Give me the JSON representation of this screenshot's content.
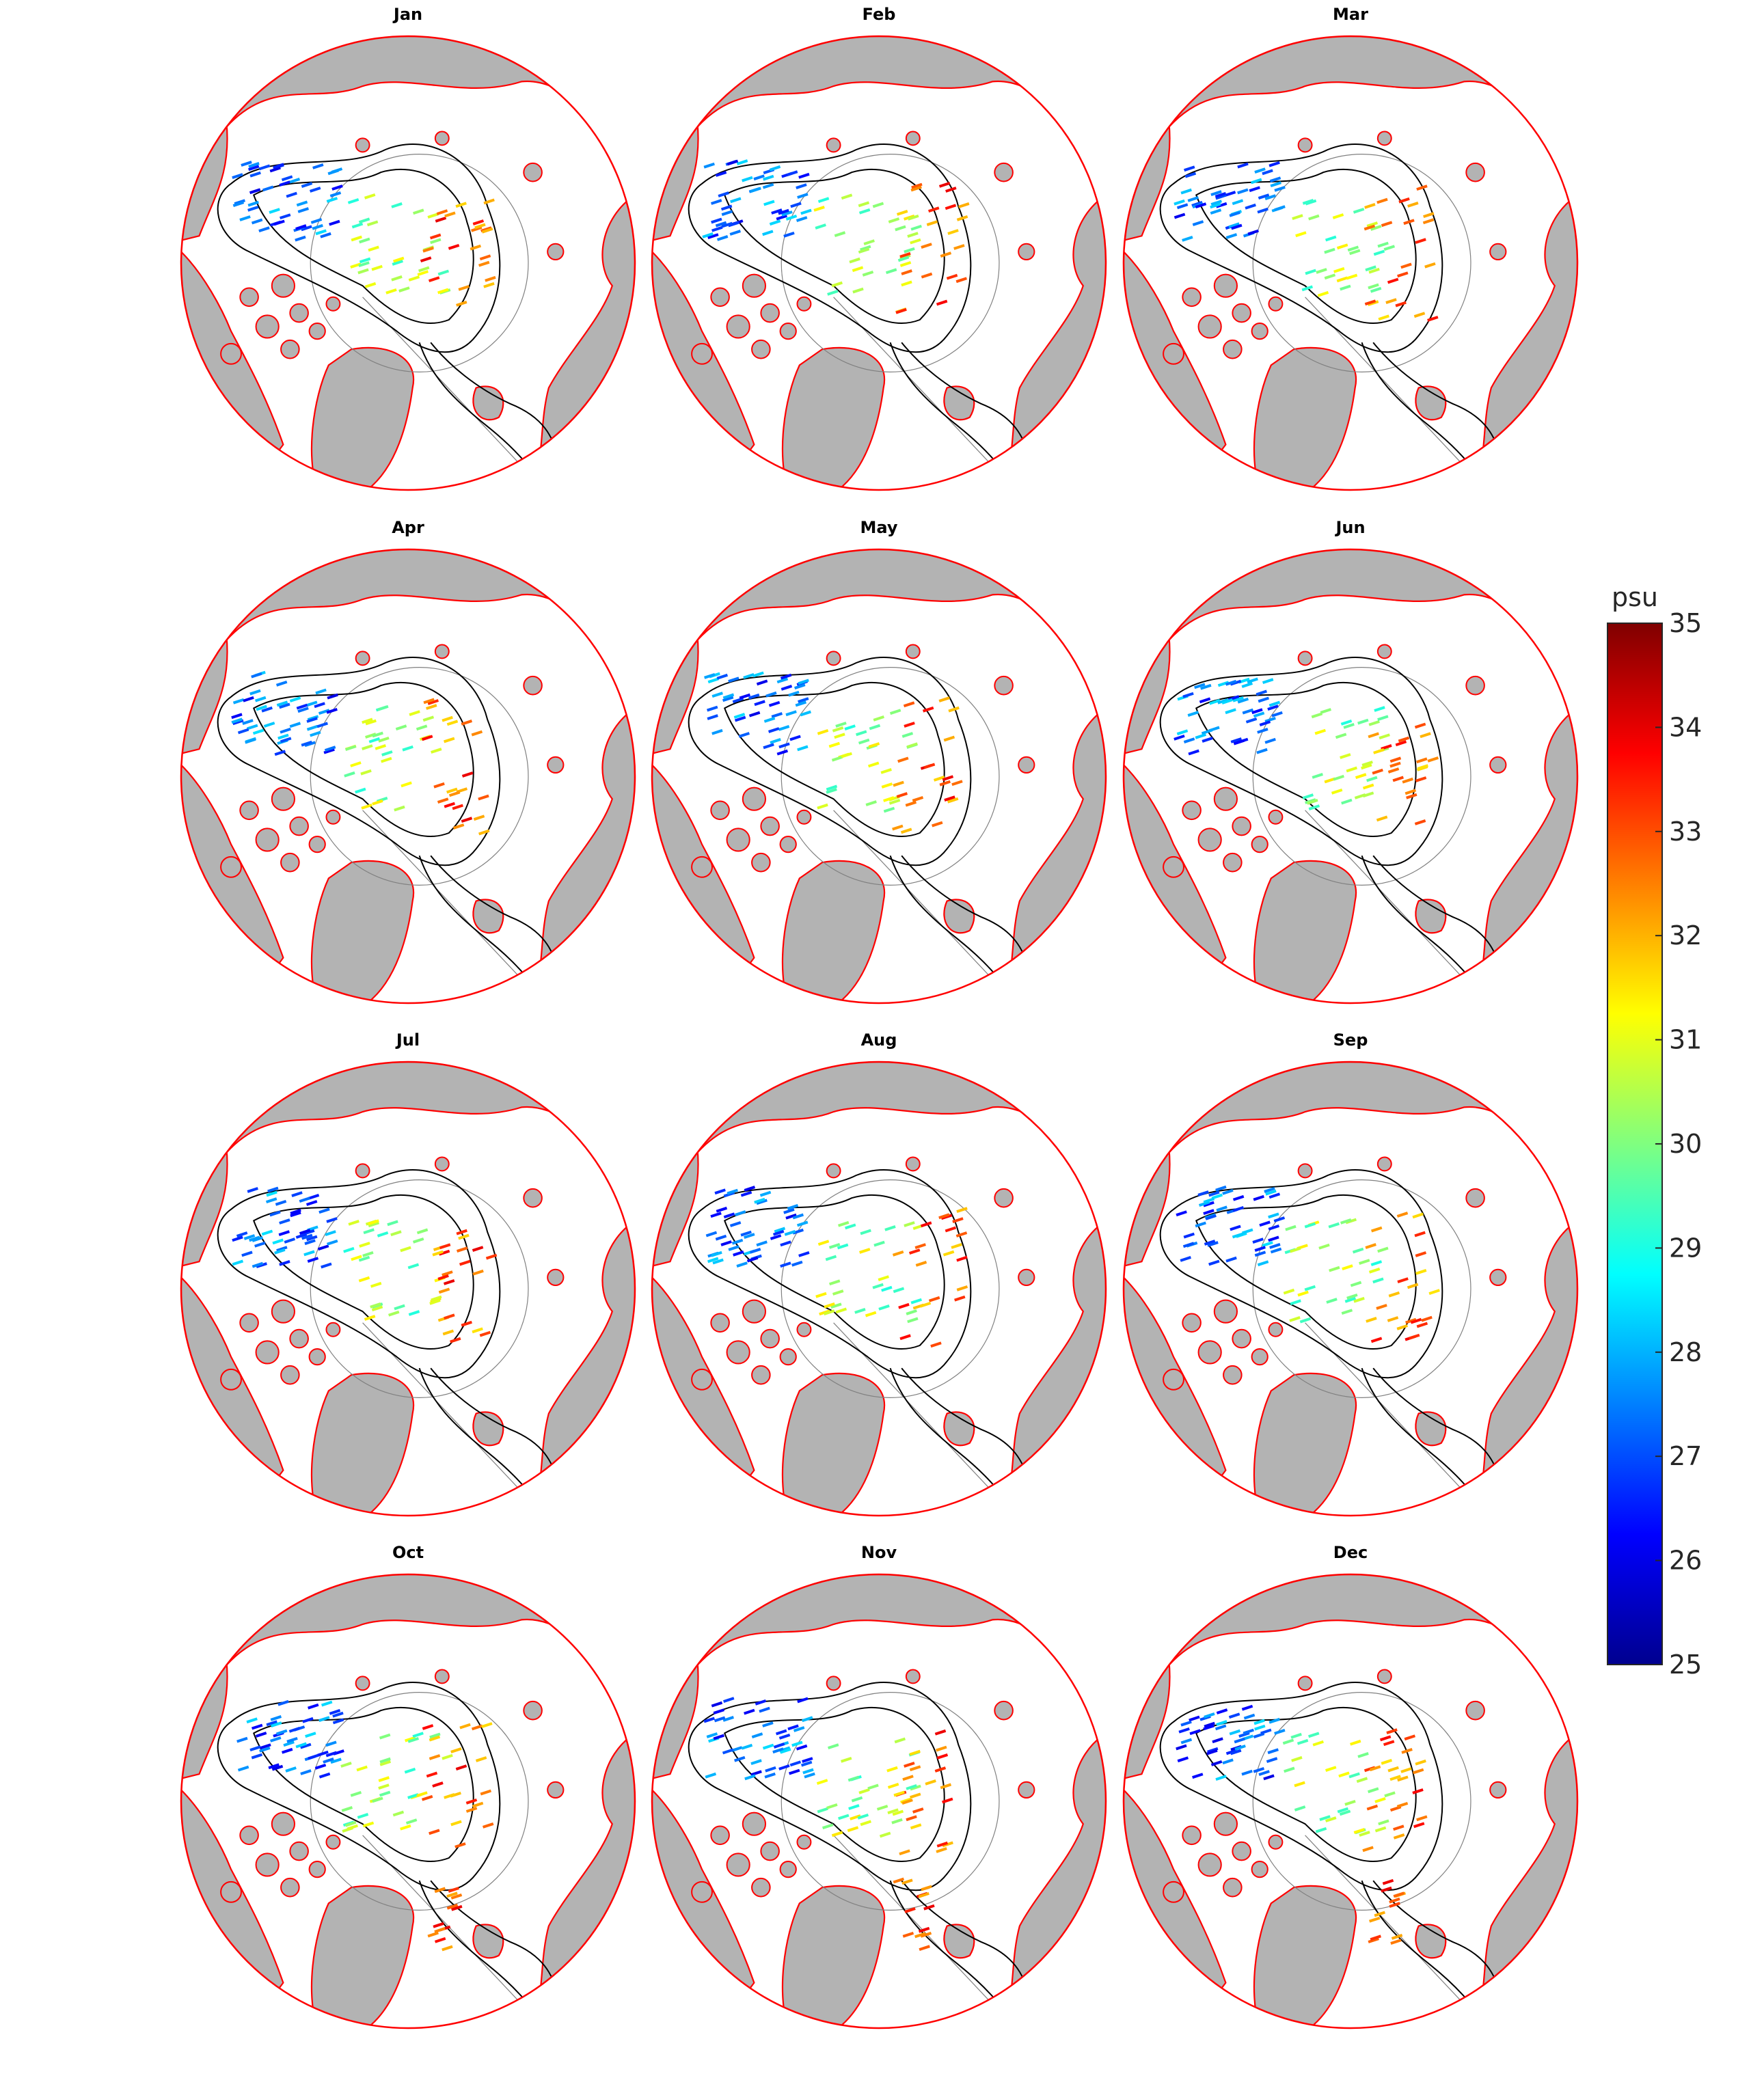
{
  "figure": {
    "panels": [
      {
        "title": "Jan"
      },
      {
        "title": "Feb"
      },
      {
        "title": "Mar"
      },
      {
        "title": "Apr"
      },
      {
        "title": "May"
      },
      {
        "title": "Jun"
      },
      {
        "title": "Jul"
      },
      {
        "title": "Aug"
      },
      {
        "title": "Sep"
      },
      {
        "title": "Oct"
      },
      {
        "title": "Nov"
      },
      {
        "title": "Dec"
      }
    ],
    "colorbar": {
      "unit": "psu",
      "min": 25,
      "max": 35,
      "ticks": [
        "25",
        "26",
        "27",
        "28",
        "29",
        "30",
        "31",
        "32",
        "33",
        "34",
        "35"
      ],
      "colormap": "jet"
    },
    "colors": {
      "land": "#b3b3b3",
      "coastline": "#ff0000",
      "contour": "#000000",
      "graticule": "#808080",
      "ocean": "#ffffff"
    }
  }
}
